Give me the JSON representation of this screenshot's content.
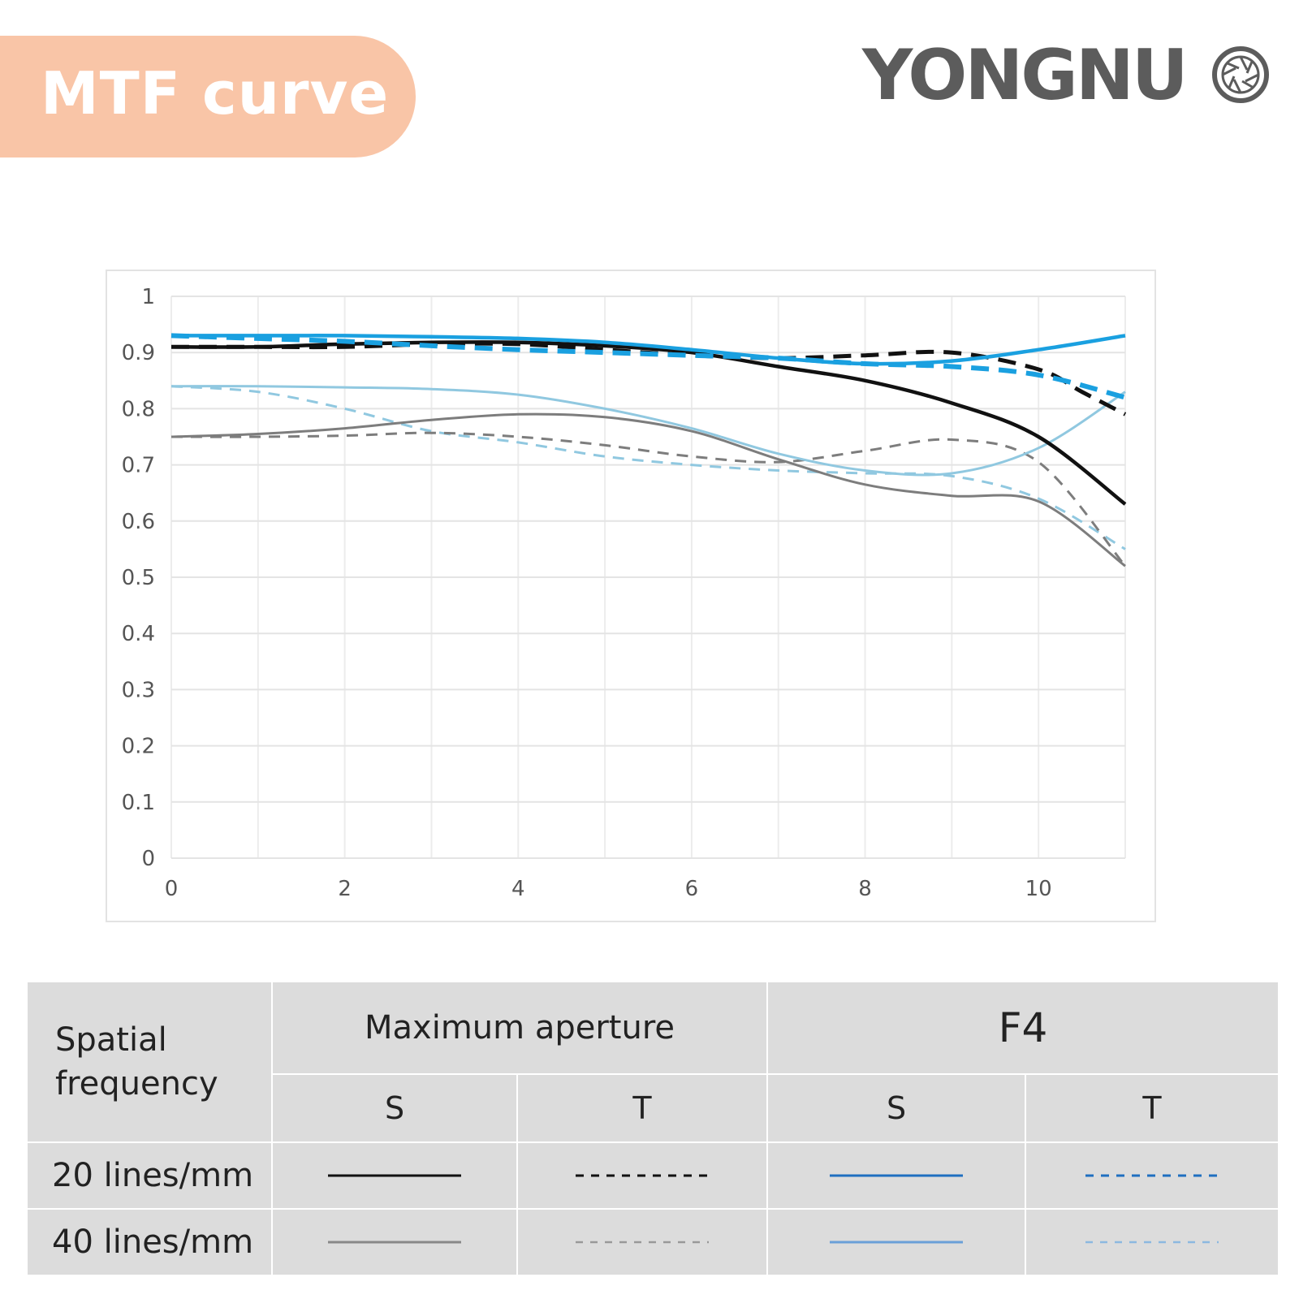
{
  "header": {
    "badge_text": "MTF curve",
    "logo_text": "YONGNU",
    "logo_mark_icon": "aperture-icon",
    "badge_color": "#f9c5a7",
    "logo_color": "#5c5c5c"
  },
  "chart_data": {
    "type": "line",
    "title": "",
    "xlabel": "",
    "ylabel": "",
    "xlim": [
      0,
      11
    ],
    "ylim": [
      0,
      1
    ],
    "x_ticks": [
      "0",
      "2",
      "4",
      "6",
      "8",
      "10"
    ],
    "y_ticks": [
      "0",
      "0.1",
      "0.2",
      "0.3",
      "0.4",
      "0.5",
      "0.6",
      "0.7",
      "0.8",
      "0.9",
      "1"
    ],
    "grid": true,
    "series": [
      {
        "key": "max_20_s",
        "color": "#111111",
        "dash": false,
        "width": 4.5,
        "x": [
          0,
          1,
          2,
          3,
          4,
          5,
          6,
          7,
          8,
          9,
          10,
          11
        ],
        "y": [
          0.91,
          0.91,
          0.915,
          0.918,
          0.918,
          0.912,
          0.9,
          0.875,
          0.85,
          0.81,
          0.75,
          0.63
        ]
      },
      {
        "key": "max_20_t",
        "color": "#111111",
        "dash": true,
        "width": 5,
        "x": [
          0,
          1,
          2,
          3,
          4,
          5,
          6,
          7,
          8,
          9,
          10,
          10.5,
          11
        ],
        "y": [
          0.91,
          0.91,
          0.91,
          0.915,
          0.915,
          0.905,
          0.895,
          0.89,
          0.895,
          0.9,
          0.87,
          0.83,
          0.79
        ]
      },
      {
        "key": "f4_20_s",
        "color": "#1aa0e0",
        "dash": false,
        "width": 4.5,
        "x": [
          0,
          1,
          2,
          3,
          4,
          5,
          6,
          7,
          8,
          9,
          10,
          11
        ],
        "y": [
          0.93,
          0.93,
          0.93,
          0.928,
          0.925,
          0.918,
          0.905,
          0.89,
          0.88,
          0.885,
          0.905,
          0.93
        ]
      },
      {
        "key": "f4_20_t",
        "color": "#1aa0e0",
        "dash": true,
        "width": 6,
        "x": [
          0,
          1,
          2,
          3,
          4,
          5,
          6,
          7,
          8,
          9,
          10,
          11
        ],
        "y": [
          0.93,
          0.925,
          0.92,
          0.912,
          0.905,
          0.9,
          0.895,
          0.89,
          0.88,
          0.875,
          0.86,
          0.82
        ]
      },
      {
        "key": "max_40_s",
        "color": "#7d7d7d",
        "dash": false,
        "width": 3,
        "x": [
          0,
          1,
          2,
          3,
          4,
          5,
          6,
          7,
          8,
          9,
          10,
          11
        ],
        "y": [
          0.75,
          0.755,
          0.765,
          0.78,
          0.79,
          0.785,
          0.76,
          0.71,
          0.665,
          0.645,
          0.635,
          0.52
        ]
      },
      {
        "key": "max_40_t",
        "color": "#7d7d7d",
        "dash": true,
        "width": 3,
        "x": [
          0,
          1,
          2,
          3,
          4,
          5,
          6,
          7,
          8,
          9,
          10,
          11
        ],
        "y": [
          0.75,
          0.75,
          0.752,
          0.757,
          0.75,
          0.735,
          0.715,
          0.705,
          0.725,
          0.745,
          0.705,
          0.52
        ]
      },
      {
        "key": "f4_40_s",
        "color": "#90c8e0",
        "dash": false,
        "width": 3,
        "x": [
          0,
          1,
          2,
          3,
          4,
          5,
          6,
          7,
          8,
          9,
          10,
          11
        ],
        "y": [
          0.84,
          0.84,
          0.838,
          0.835,
          0.825,
          0.8,
          0.765,
          0.72,
          0.69,
          0.685,
          0.73,
          0.83
        ]
      },
      {
        "key": "f4_40_t",
        "color": "#90c8e0",
        "dash": true,
        "width": 3,
        "x": [
          0,
          1,
          2,
          3,
          4,
          5,
          6,
          7,
          8,
          9,
          10,
          11
        ],
        "y": [
          0.84,
          0.83,
          0.8,
          0.76,
          0.74,
          0.715,
          0.7,
          0.69,
          0.685,
          0.68,
          0.64,
          0.55
        ]
      }
    ]
  },
  "legend_table": {
    "corner_label": "Spatial frequency",
    "group_max": "Maximum aperture",
    "group_f4": "F4",
    "s_label": "S",
    "t_label": "T",
    "row_20": "20 lines/mm",
    "row_40": "40 lines/mm"
  }
}
